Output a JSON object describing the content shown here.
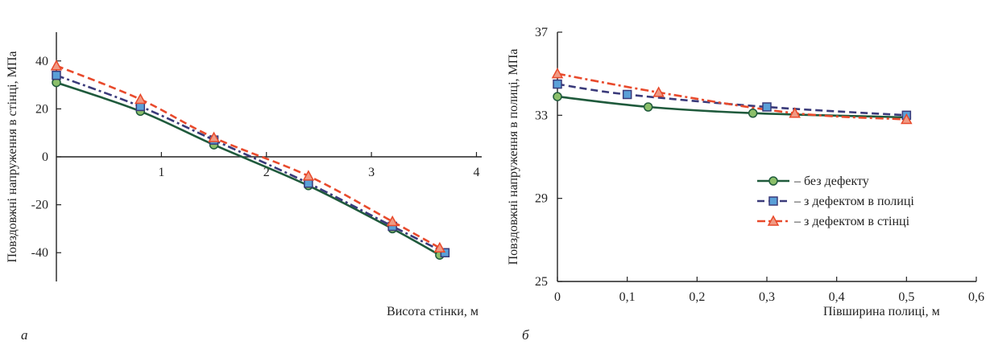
{
  "chart_data": [
    {
      "type": "line",
      "panel_label": "а",
      "xlabel": "Висота стінки, м",
      "ylabel": "Повздовжні напруження в стінці, МПа",
      "xlim": [
        0,
        4.05
      ],
      "ylim": [
        -52,
        52
      ],
      "x_ticks": [
        1,
        2,
        3,
        4
      ],
      "x_tick_labels": [
        "1",
        "2",
        "3",
        "4"
      ],
      "y_ticks": [
        40,
        20,
        0,
        -20,
        -40
      ],
      "y_tick_labels": [
        "40",
        "20",
        "0",
        "-20",
        "-40"
      ],
      "grid": false,
      "series": [
        {
          "key": "no_defect",
          "line_style": "solid",
          "color": "#1f5a3c",
          "marker": "circle",
          "marker_color": "#8bbf6a",
          "x": [
            0.0,
            0.8,
            1.5,
            2.4,
            3.2,
            3.65
          ],
          "y": [
            31,
            19,
            5,
            -12,
            -30,
            -41
          ]
        },
        {
          "key": "flange_defect",
          "line_style": "dash-dot",
          "color": "#3a3a7a",
          "marker": "square",
          "marker_color": "#5aa0d8",
          "x": [
            0.0,
            0.8,
            1.5,
            2.4,
            3.2,
            3.7
          ],
          "y": [
            34,
            21,
            7,
            -11,
            -29,
            -40
          ]
        },
        {
          "key": "web_defect",
          "line_style": "dashed",
          "color": "#e84a2c",
          "marker": "triangle",
          "marker_color": "#f09a84",
          "x": [
            0.0,
            0.8,
            1.5,
            2.4,
            3.2,
            3.65
          ],
          "y": [
            38,
            24,
            8,
            -8,
            -27,
            -38
          ]
        }
      ]
    },
    {
      "type": "line",
      "panel_label": "б",
      "xlabel": "Півширина полиці, м",
      "ylabel": "Повздовжні напруження в полиці, МПа",
      "xlim": [
        0,
        0.6
      ],
      "ylim": [
        25,
        37
      ],
      "x_ticks": [
        0,
        0.1,
        0.2,
        0.3,
        0.4,
        0.5,
        0.6
      ],
      "x_tick_labels": [
        "0",
        "0,1",
        "0,2",
        "0,3",
        "0,4",
        "0,5",
        "0,6"
      ],
      "y_ticks": [
        37,
        33,
        29,
        25
      ],
      "y_tick_labels": [
        "37",
        "33",
        "29",
        "25"
      ],
      "grid": false,
      "legend_position": "center-right",
      "series": [
        {
          "key": "no_defect",
          "name": "– без дефекту",
          "line_style": "solid",
          "color": "#1f5a3c",
          "marker": "circle",
          "marker_color": "#8bbf6a",
          "x": [
            0.0,
            0.13,
            0.28,
            0.5
          ],
          "y": [
            33.9,
            33.4,
            33.1,
            32.9
          ]
        },
        {
          "key": "flange_defect",
          "name": "– з дефектом в полиці",
          "line_style": "dashed",
          "color": "#3a3a7a",
          "marker": "square",
          "marker_color": "#5aa0d8",
          "x": [
            0.0,
            0.1,
            0.3,
            0.5
          ],
          "y": [
            34.5,
            34.0,
            33.4,
            33.0
          ]
        },
        {
          "key": "web_defect",
          "name": "– з дефектом в стінці",
          "line_style": "dash-dot",
          "color": "#e84a2c",
          "marker": "triangle",
          "marker_color": "#f09a84",
          "x": [
            0.0,
            0.145,
            0.34,
            0.5
          ],
          "y": [
            35.0,
            34.1,
            33.1,
            32.8
          ]
        }
      ]
    }
  ]
}
